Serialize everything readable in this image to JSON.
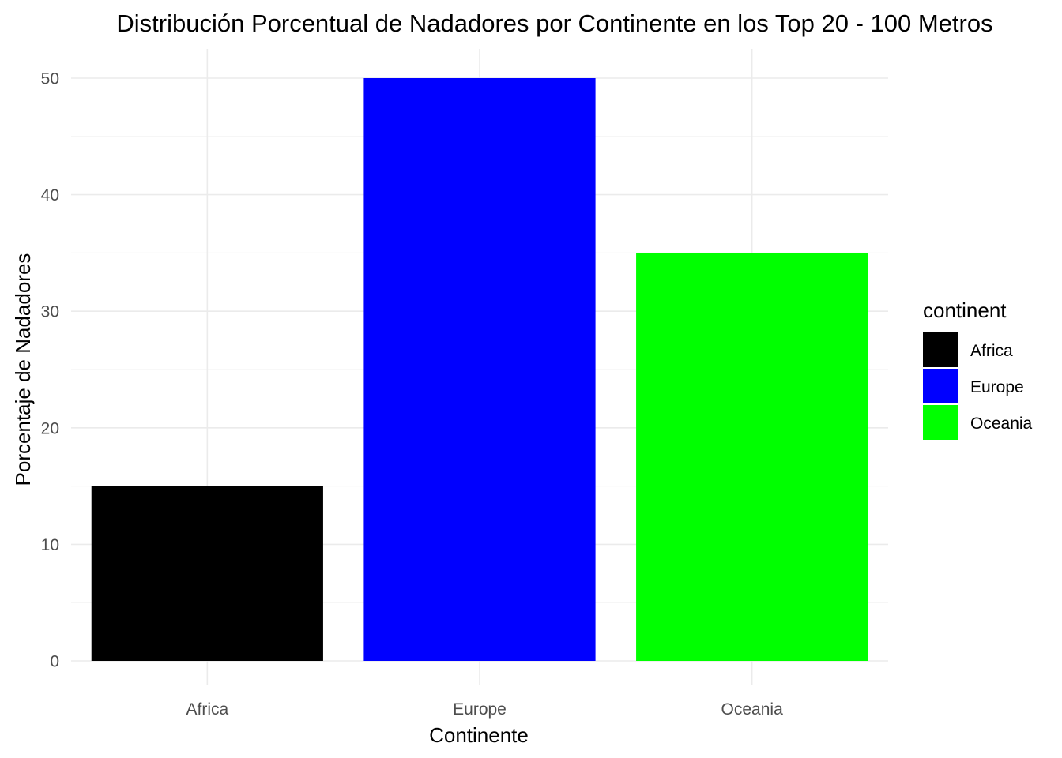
{
  "chart_data": {
    "type": "bar",
    "title": "Distribución Porcentual de Nadadores por Continente en los Top 20 - 100 Metros",
    "xlabel": "Continente",
    "ylabel": "Porcentaje de Nadadores",
    "categories": [
      "Africa",
      "Europe",
      "Oceania"
    ],
    "values": [
      15,
      50,
      35
    ],
    "colors": [
      "#000000",
      "#0000ff",
      "#00ff00"
    ],
    "ylim": [
      0,
      52
    ],
    "y_ticks": [
      0,
      10,
      20,
      30,
      40,
      50
    ],
    "grid": true,
    "legend": {
      "title": "continent",
      "position": "right",
      "entries": [
        {
          "label": "Africa",
          "color": "#000000"
        },
        {
          "label": "Europe",
          "color": "#0000ff"
        },
        {
          "label": "Oceania",
          "color": "#00ff00"
        }
      ]
    }
  }
}
